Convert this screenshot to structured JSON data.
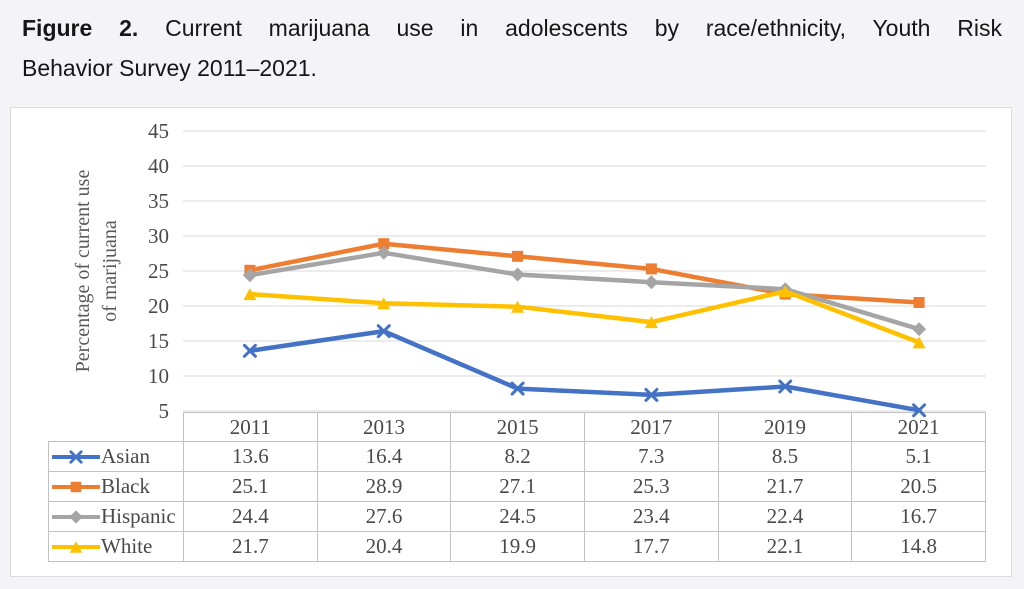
{
  "figure": {
    "label": "Figure 2.",
    "title_line1_rest": "Current marijuana use in adolescents by race/ethnicity, Youth Risk",
    "title_line2": "Behavior Survey 2011–2021."
  },
  "chart_data": {
    "type": "line",
    "title": "Current marijuana use in adolescents by race/ethnicity, Youth Risk Behavior Survey 2011–2021",
    "categories": [
      "2011",
      "2013",
      "2015",
      "2017",
      "2019",
      "2021"
    ],
    "series": [
      {
        "name": "Asian",
        "color": "#4472C4",
        "marker": "x",
        "values": [
          13.6,
          16.4,
          8.2,
          7.3,
          8.5,
          5.1
        ]
      },
      {
        "name": "Black",
        "color": "#ED7D31",
        "marker": "square",
        "values": [
          25.1,
          28.9,
          27.1,
          25.3,
          21.7,
          20.5
        ]
      },
      {
        "name": "Hispanic",
        "color": "#A5A5A5",
        "marker": "diamond",
        "values": [
          24.4,
          27.6,
          24.5,
          23.4,
          22.4,
          16.7
        ]
      },
      {
        "name": "White",
        "color": "#FFC000",
        "marker": "triangle",
        "values": [
          21.7,
          20.4,
          19.9,
          17.7,
          22.1,
          14.8
        ]
      }
    ],
    "xlabel": "",
    "ylabel": "Percentage of current use of marijuana",
    "ylabel_lines": [
      "Percentage of current use",
      "of marijuana"
    ],
    "yticks": [
      5,
      10,
      15,
      20,
      25,
      30,
      35,
      40,
      45
    ],
    "ylim": [
      5,
      45
    ],
    "grid": true,
    "legend_position": "table-left"
  },
  "colors": {
    "page_bg": "#f4f4f6",
    "card_border": "#dcdcde",
    "table_border": "#c2c2c4",
    "grid": "#d8d8d8",
    "axis_text": "#4a4a4c",
    "caption_text": "#161616"
  }
}
